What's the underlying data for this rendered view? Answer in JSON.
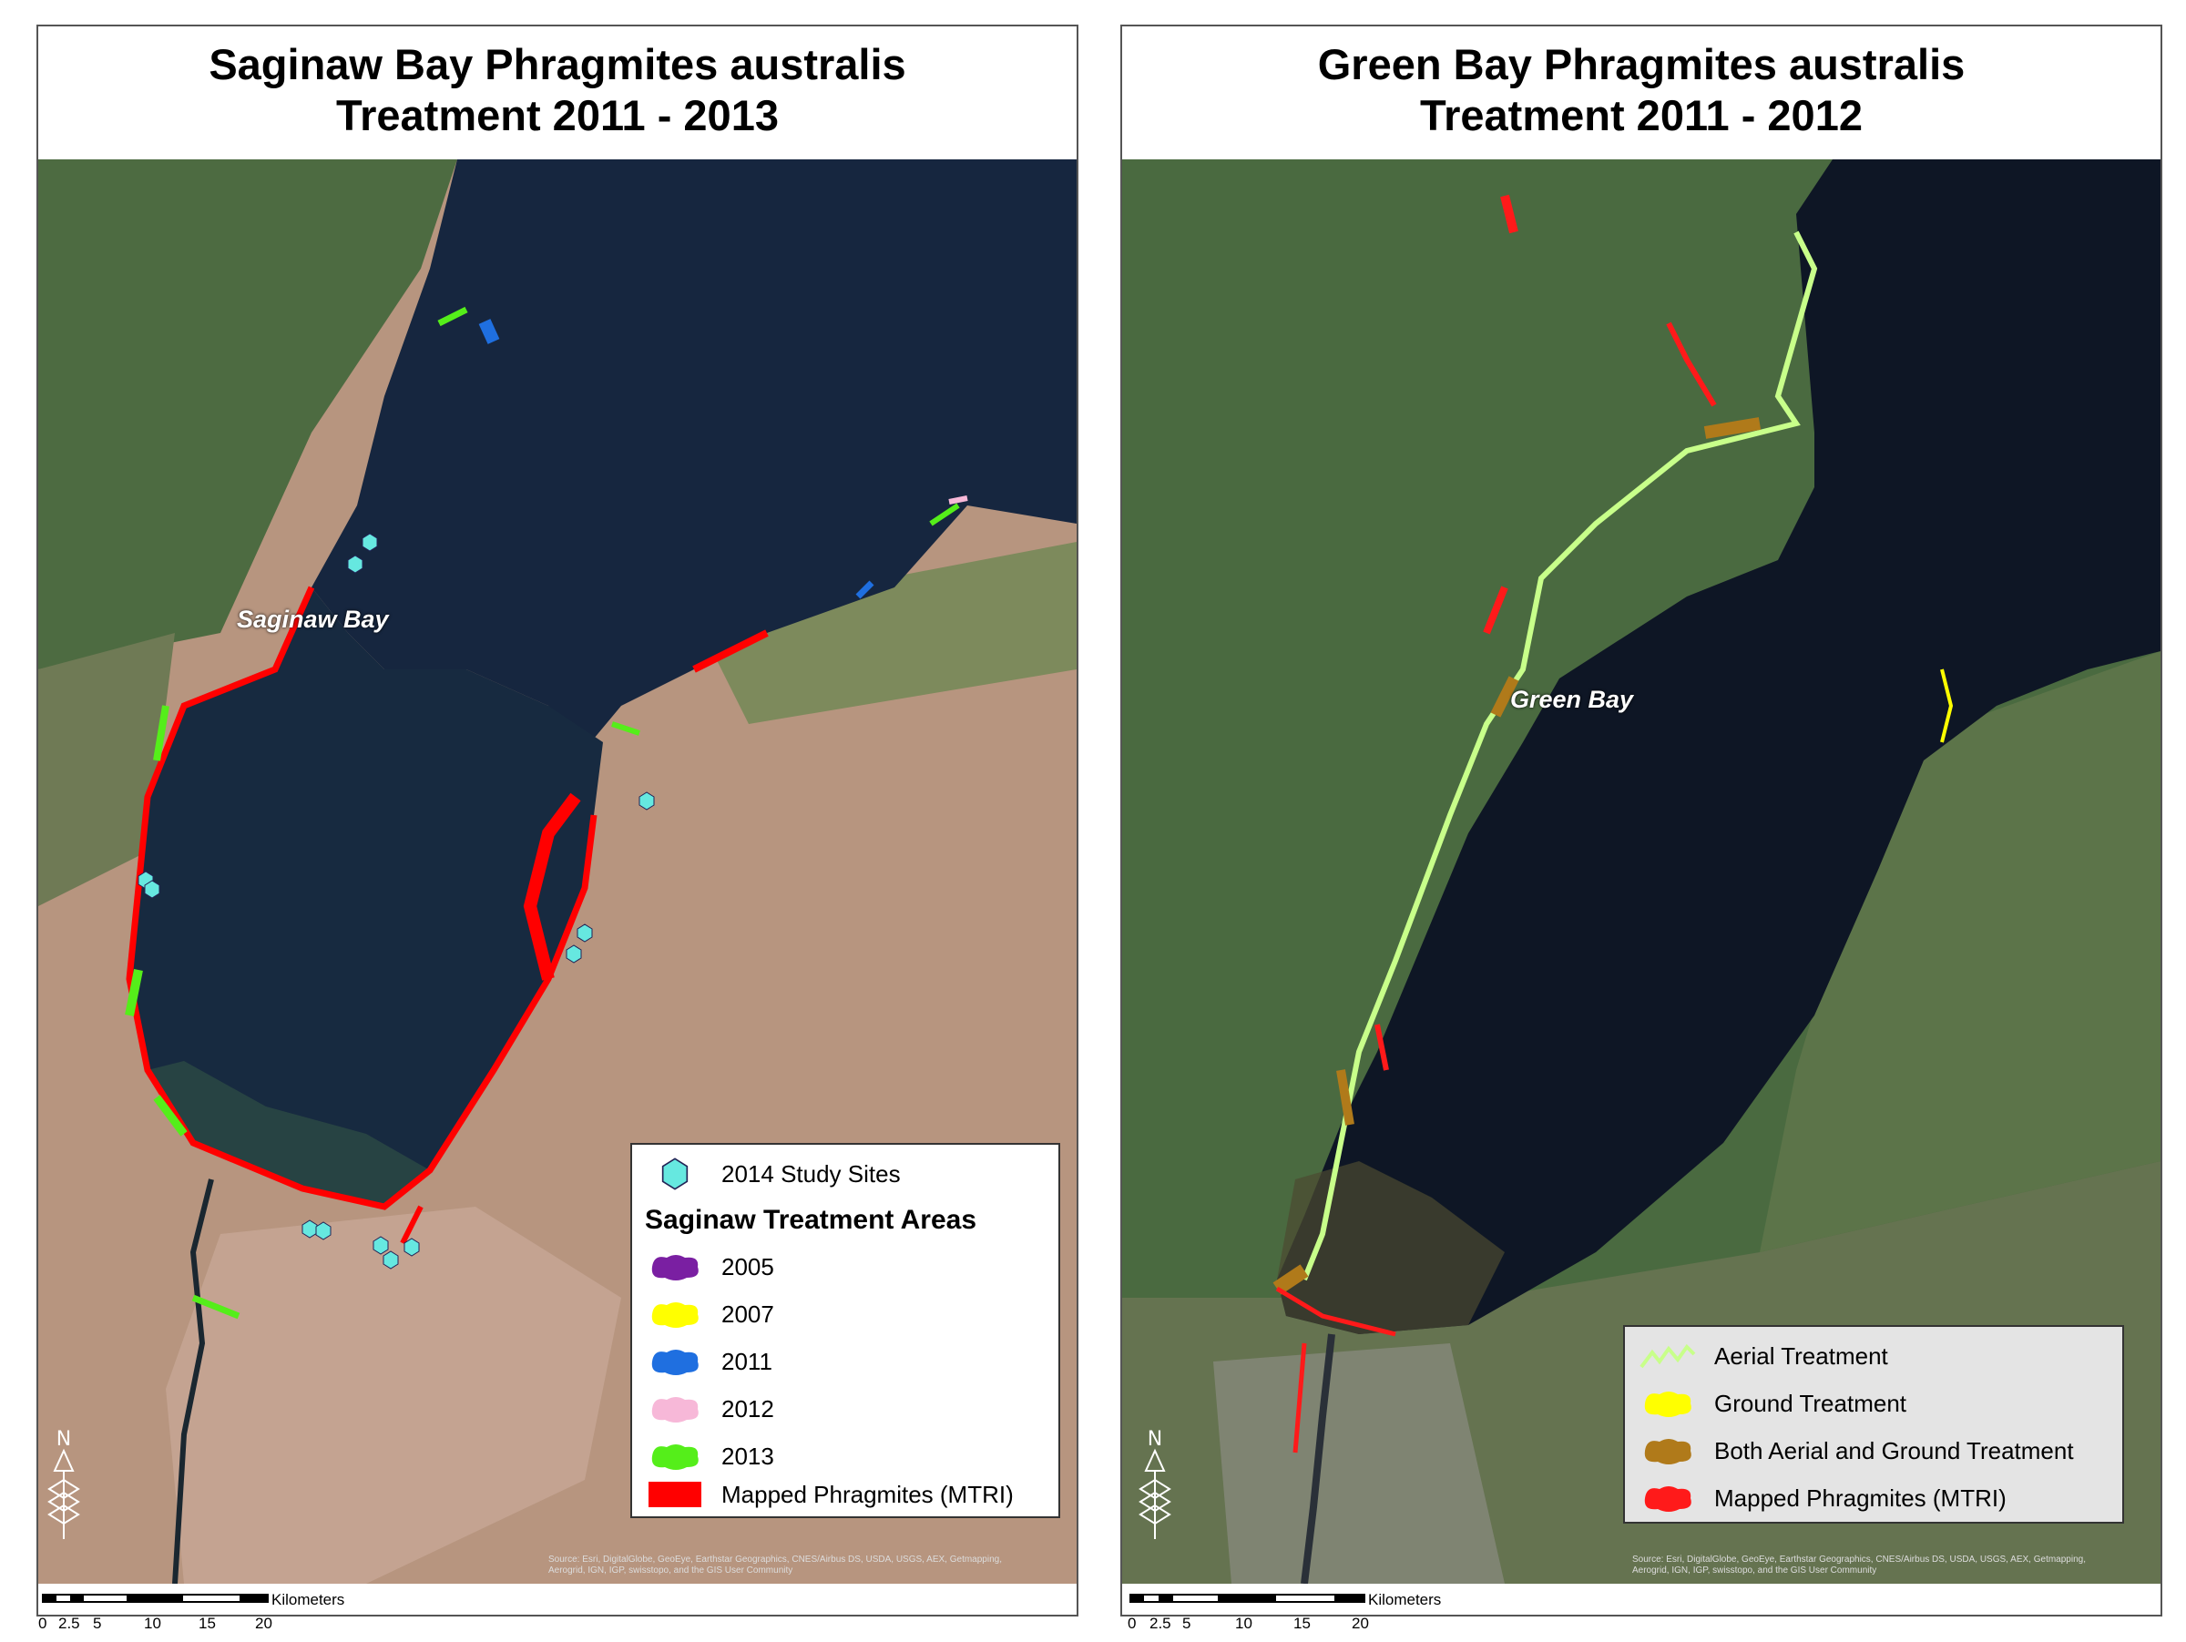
{
  "left_panel": {
    "title_line1": "Saginaw Bay Phragmites australis",
    "title_line2": "Treatment 2011 - 2013",
    "bay_label": "Saginaw Bay",
    "legend": {
      "study_sites_label": "2014 Study Sites",
      "section_title": "Saginaw Treatment Areas",
      "items": [
        {
          "label": "2005",
          "color": "#7a1fa2"
        },
        {
          "label": "2007",
          "color": "#ffff00"
        },
        {
          "label": "2011",
          "color": "#1f6fe0"
        },
        {
          "label": "2012",
          "color": "#f7b8d8"
        },
        {
          "label": "2013",
          "color": "#55ee1a"
        }
      ],
      "mapped_label": "Mapped Phragmites (MTRI)",
      "mapped_color": "#ff0000",
      "study_sites_color": "#66e8e0"
    },
    "attribution": "Source: Esri, DigitalGlobe, GeoEye, Earthstar Geographics, CNES/Airbus DS, USDA, USGS, AEX, Getmapping, Aerogrid, IGN, IGP, swisstopo, and the GIS User Community",
    "scale": {
      "unit": "Kilometers",
      "ticks": [
        "0",
        "2.5",
        "5",
        "10",
        "15",
        "20"
      ]
    },
    "north_label": "N"
  },
  "right_panel": {
    "title_line1": "Green Bay Phragmites australis",
    "title_line2": "Treatment 2011 - 2012",
    "bay_label": "Green Bay",
    "legend": {
      "items": [
        {
          "label": "Aerial Treatment",
          "color": "#c8ff8a"
        },
        {
          "label": "Ground Treatment",
          "color": "#ffff00"
        },
        {
          "label": "Both Aerial and Ground Treatment",
          "color": "#b07a1a"
        },
        {
          "label": "Mapped Phragmites (MTRI)",
          "color": "#ff1a1a"
        }
      ]
    },
    "attribution": "Source: Esri, DigitalGlobe, GeoEye, Earthstar Geographics, CNES/Airbus DS, USDA, USGS, AEX, Getmapping, Aerogrid, IGN, IGP, swisstopo, and the GIS User Community",
    "scale": {
      "unit": "Kilometers",
      "ticks": [
        "0",
        "2.5",
        "5",
        "10",
        "15",
        "20"
      ]
    },
    "north_label": "N"
  }
}
